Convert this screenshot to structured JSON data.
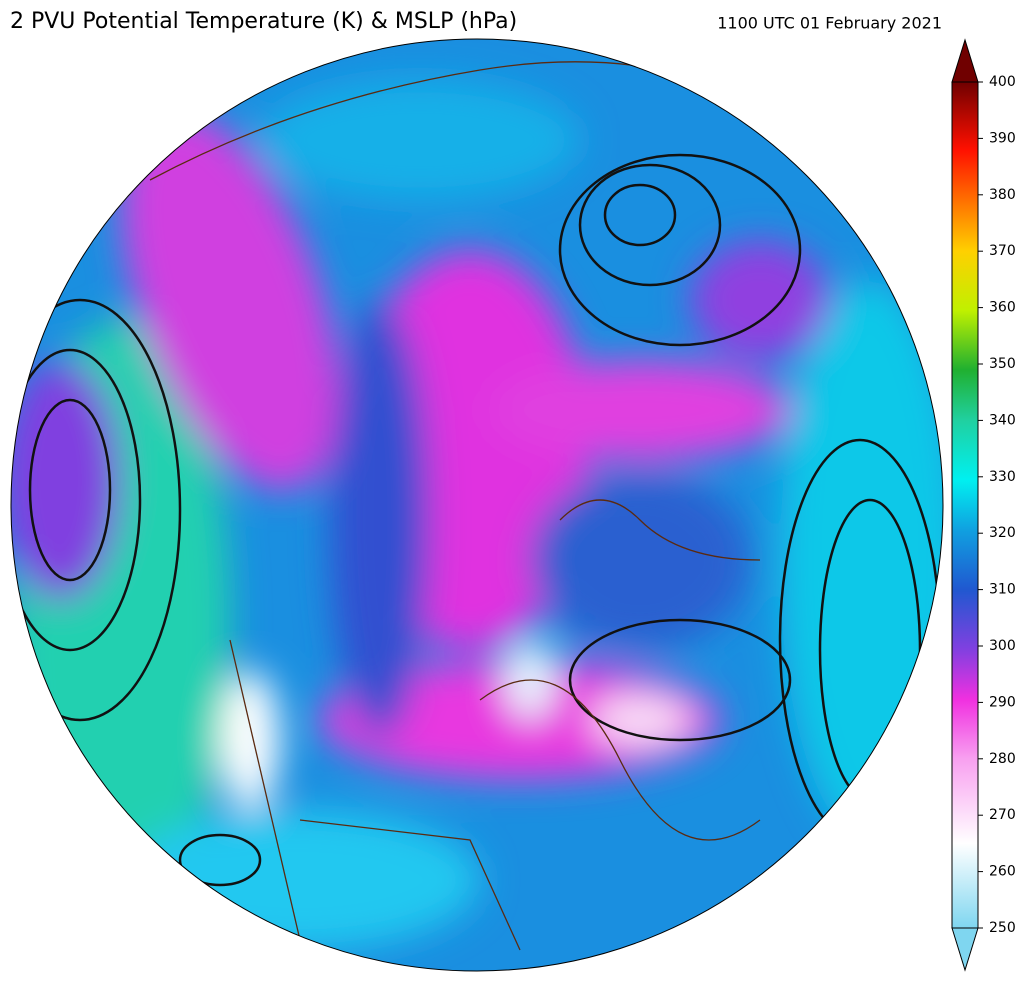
{
  "header": {
    "title": "2 PVU Potential Temperature (K) & MSLP (hPa)",
    "timestamp": "1100 UTC 01 February 2021"
  },
  "colorbar": {
    "lim": [
      250,
      400
    ],
    "ticks": [
      250,
      260,
      270,
      280,
      290,
      300,
      310,
      320,
      330,
      340,
      350,
      360,
      370,
      380,
      390,
      400
    ]
  }
}
